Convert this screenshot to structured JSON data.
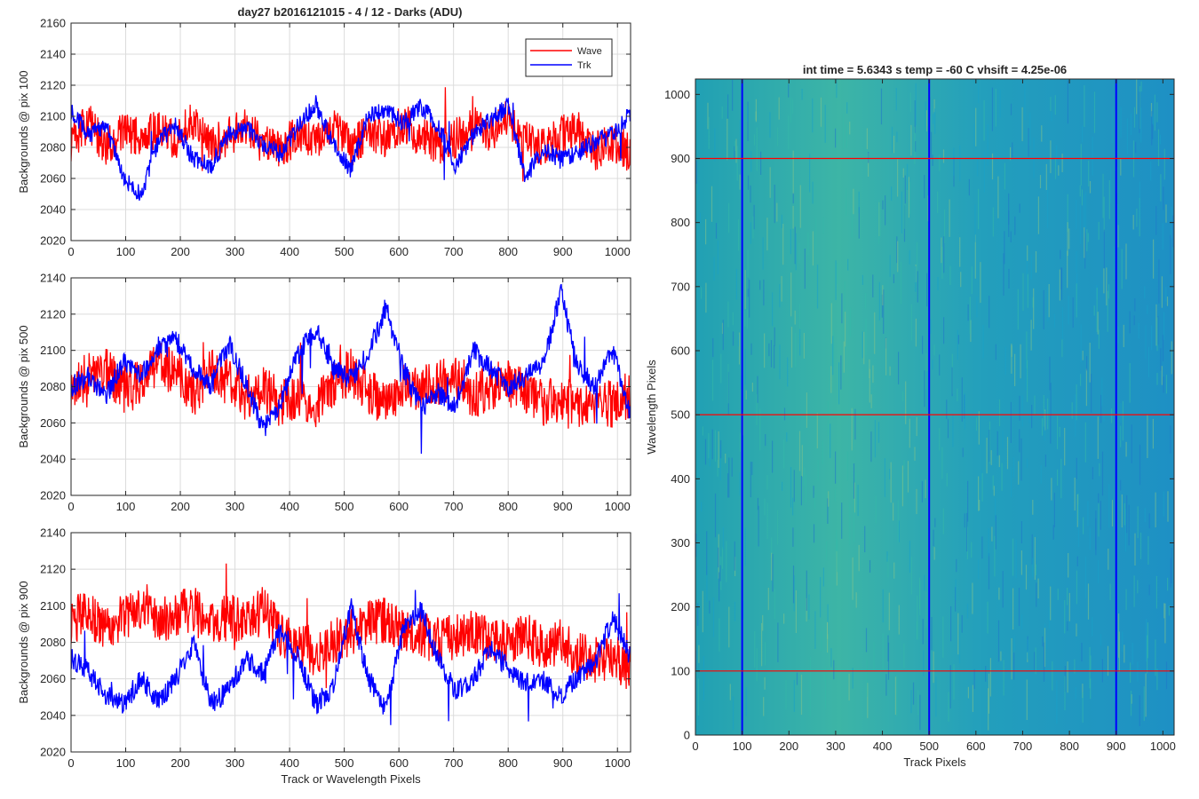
{
  "figure": {
    "title": "day27 b2016121015 - 4 / 12 - Darks (ADU)"
  },
  "chart_data": [
    {
      "type": "line",
      "ylabel": "Backgrounds @ pix 100",
      "xlabel": "",
      "xlim": [
        0,
        1024
      ],
      "ylim": [
        2020,
        2160
      ],
      "xticks": [
        0,
        100,
        200,
        300,
        400,
        500,
        600,
        700,
        800,
        900,
        1000
      ],
      "yticks": [
        2020,
        2040,
        2060,
        2080,
        2100,
        2120,
        2140,
        2160
      ],
      "grid": true,
      "legend": "top-right",
      "series": [
        {
          "name": "Wave",
          "color": "#ff0000",
          "x": [
            0,
            32,
            64,
            96,
            128,
            160,
            192,
            224,
            256,
            288,
            320,
            352,
            384,
            416,
            448,
            480,
            512,
            544,
            576,
            608,
            640,
            672,
            704,
            736,
            768,
            800,
            832,
            864,
            896,
            928,
            960,
            992,
            1023
          ],
          "y": [
            2084,
            2096,
            2080,
            2090,
            2086,
            2092,
            2084,
            2098,
            2080,
            2088,
            2092,
            2082,
            2078,
            2090,
            2086,
            2094,
            2080,
            2090,
            2084,
            2096,
            2088,
            2082,
            2086,
            2094,
            2090,
            2098,
            2084,
            2080,
            2088,
            2090,
            2078,
            2084,
            2076
          ]
        },
        {
          "name": "Trk",
          "color": "#0000ff",
          "x": [
            0,
            32,
            64,
            96,
            128,
            160,
            192,
            224,
            256,
            288,
            320,
            352,
            384,
            416,
            448,
            480,
            512,
            544,
            576,
            608,
            640,
            672,
            704,
            736,
            768,
            800,
            832,
            864,
            896,
            928,
            960,
            992,
            1023
          ],
          "y": [
            2104,
            2088,
            2094,
            2060,
            2050,
            2084,
            2094,
            2072,
            2068,
            2088,
            2092,
            2082,
            2076,
            2094,
            2108,
            2082,
            2066,
            2100,
            2104,
            2096,
            2106,
            2094,
            2068,
            2088,
            2098,
            2106,
            2060,
            2080,
            2072,
            2076,
            2084,
            2088,
            2102
          ]
        }
      ]
    },
    {
      "type": "line",
      "ylabel": "Backgrounds @ pix 500",
      "xlabel": "",
      "xlim": [
        0,
        1024
      ],
      "ylim": [
        2020,
        2140
      ],
      "xticks": [
        0,
        100,
        200,
        300,
        400,
        500,
        600,
        700,
        800,
        900,
        1000
      ],
      "yticks": [
        2020,
        2040,
        2060,
        2080,
        2100,
        2120,
        2140
      ],
      "grid": true,
      "series": [
        {
          "name": "Wave",
          "color": "#ff0000",
          "x": [
            0,
            32,
            64,
            96,
            128,
            160,
            192,
            224,
            256,
            288,
            320,
            352,
            384,
            416,
            448,
            480,
            512,
            544,
            576,
            608,
            640,
            672,
            704,
            736,
            768,
            800,
            832,
            864,
            896,
            928,
            960,
            992,
            1023
          ],
          "y": [
            2080,
            2086,
            2090,
            2078,
            2084,
            2092,
            2088,
            2076,
            2090,
            2082,
            2074,
            2080,
            2070,
            2076,
            2070,
            2082,
            2088,
            2076,
            2072,
            2080,
            2078,
            2082,
            2086,
            2074,
            2080,
            2082,
            2078,
            2070,
            2074,
            2068,
            2072,
            2070,
            2076
          ]
        },
        {
          "name": "Trk",
          "color": "#0000ff",
          "x": [
            0,
            32,
            64,
            96,
            128,
            160,
            192,
            224,
            256,
            288,
            320,
            352,
            384,
            416,
            448,
            480,
            512,
            544,
            576,
            608,
            640,
            672,
            704,
            736,
            768,
            800,
            832,
            864,
            896,
            928,
            960,
            992,
            1023
          ],
          "y": [
            2080,
            2086,
            2074,
            2094,
            2086,
            2102,
            2106,
            2090,
            2080,
            2104,
            2082,
            2056,
            2072,
            2098,
            2112,
            2090,
            2084,
            2098,
            2124,
            2090,
            2068,
            2076,
            2070,
            2100,
            2090,
            2080,
            2086,
            2092,
            2132,
            2090,
            2080,
            2100,
            2066
          ]
        }
      ]
    },
    {
      "type": "line",
      "ylabel": "Backgrounds @ pix 900",
      "xlabel": "Track or Wavelength Pixels",
      "xlim": [
        0,
        1024
      ],
      "ylim": [
        2020,
        2140
      ],
      "xticks": [
        0,
        100,
        200,
        300,
        400,
        500,
        600,
        700,
        800,
        900,
        1000
      ],
      "yticks": [
        2020,
        2040,
        2060,
        2080,
        2100,
        2120,
        2140
      ],
      "grid": true,
      "series": [
        {
          "name": "Wave",
          "color": "#ff0000",
          "x": [
            0,
            32,
            64,
            96,
            128,
            160,
            192,
            224,
            256,
            288,
            320,
            352,
            384,
            416,
            448,
            480,
            512,
            544,
            576,
            608,
            640,
            672,
            704,
            736,
            768,
            800,
            832,
            864,
            896,
            928,
            960,
            992,
            1023
          ],
          "y": [
            2092,
            2096,
            2088,
            2094,
            2100,
            2090,
            2096,
            2098,
            2088,
            2094,
            2090,
            2098,
            2084,
            2080,
            2074,
            2080,
            2086,
            2090,
            2092,
            2088,
            2084,
            2080,
            2084,
            2086,
            2082,
            2080,
            2084,
            2076,
            2080,
            2074,
            2070,
            2072,
            2066
          ]
        },
        {
          "name": "Trk",
          "color": "#0000ff",
          "x": [
            0,
            32,
            64,
            96,
            128,
            160,
            192,
            224,
            256,
            288,
            320,
            352,
            384,
            416,
            448,
            480,
            512,
            544,
            576,
            608,
            640,
            672,
            704,
            736,
            768,
            800,
            832,
            864,
            896,
            928,
            960,
            992,
            1023
          ],
          "y": [
            2072,
            2064,
            2050,
            2046,
            2060,
            2048,
            2060,
            2080,
            2046,
            2054,
            2072,
            2062,
            2088,
            2072,
            2046,
            2056,
            2100,
            2060,
            2044,
            2086,
            2098,
            2070,
            2054,
            2060,
            2076,
            2066,
            2058,
            2060,
            2050,
            2062,
            2070,
            2094,
            2072
          ]
        }
      ]
    },
    {
      "type": "heatmap",
      "title": "int time = 5.6343 s    temp = -60 C    vhsift = 4.25e-06",
      "xlabel": "Track Pixels",
      "ylabel": "Wavelength Pixels",
      "xlim": [
        0,
        1024
      ],
      "ylim": [
        0,
        1024
      ],
      "xticks": [
        0,
        100,
        200,
        300,
        400,
        500,
        600,
        700,
        800,
        900,
        1000
      ],
      "yticks": [
        0,
        100,
        200,
        300,
        400,
        500,
        600,
        700,
        800,
        900,
        1000
      ],
      "colormap": [
        "#1f78c8",
        "#1aa0c8",
        "#35b8a8",
        "#7fc28a"
      ],
      "vertical_markers": {
        "color": "#0000ff",
        "x": [
          100,
          500,
          900
        ]
      },
      "horizontal_markers": {
        "color": "#ff0000",
        "y": [
          100,
          500,
          900
        ]
      }
    }
  ]
}
